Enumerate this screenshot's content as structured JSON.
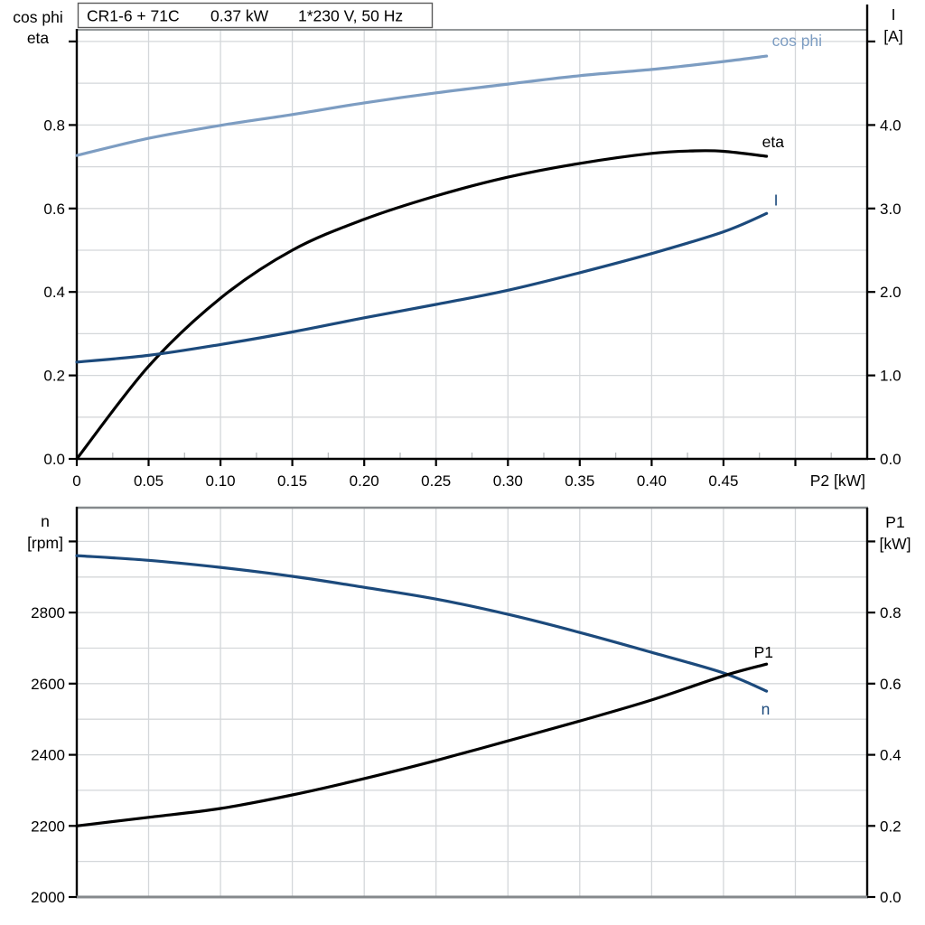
{
  "title_box": {
    "parts": [
      "CR1-6 + 71C",
      "0.37 kW",
      "1*230 V, 50 Hz"
    ]
  },
  "palette": {
    "light_blue": "#7d9dc2",
    "dark_blue": "#1c4a7c",
    "black": "#000000",
    "grid": "#d4d7da",
    "frame_gray": "#85898c",
    "box_border": "#5a5a5a",
    "text": "#000000",
    "background": "#ffffff"
  },
  "chart_data": [
    {
      "type": "line",
      "panel": "top",
      "x_axis": {
        "label": "P2 [kW]",
        "min": 0,
        "max": 0.55,
        "ticks": [
          {
            "v": 0,
            "label": "0"
          },
          {
            "v": 0.05,
            "label": "0.05"
          },
          {
            "v": 0.1,
            "label": "0.10"
          },
          {
            "v": 0.15,
            "label": "0.15"
          },
          {
            "v": 0.2,
            "label": "0.20"
          },
          {
            "v": 0.25,
            "label": "0.25"
          },
          {
            "v": 0.3,
            "label": "0.30"
          },
          {
            "v": 0.35,
            "label": "0.35"
          },
          {
            "v": 0.4,
            "label": "0.40"
          },
          {
            "v": 0.45,
            "label": "0.45"
          },
          {
            "v": 0.5,
            "label": ""
          }
        ],
        "grid_values": [
          0.05,
          0.1,
          0.15,
          0.2,
          0.25,
          0.3,
          0.35,
          0.4,
          0.45,
          0.5
        ],
        "minor_tick_values": [
          0.025,
          0.075,
          0.125,
          0.175,
          0.225,
          0.275,
          0.325,
          0.375,
          0.425,
          0.475,
          0.525
        ]
      },
      "y_left": {
        "title_lines": [
          "cos phi",
          "eta"
        ],
        "min": 0,
        "max": 1.028,
        "ticks": [
          {
            "v": 1.0,
            "label": ""
          },
          {
            "v": 0.8,
            "label": "0.8"
          },
          {
            "v": 0.6,
            "label": "0.6"
          },
          {
            "v": 0.4,
            "label": "0.4"
          },
          {
            "v": 0.2,
            "label": "0.2"
          },
          {
            "v": 0.0,
            "label": "0.0"
          }
        ],
        "grid_values": [
          0.1,
          0.2,
          0.3,
          0.4,
          0.5,
          0.6,
          0.7,
          0.8,
          0.9,
          1.0
        ]
      },
      "y_right": {
        "title_lines": [
          "I",
          "[A]"
        ],
        "min": 0,
        "max": 5.14,
        "ticks": [
          {
            "v": 5.0,
            "label": ""
          },
          {
            "v": 4.0,
            "label": "4.0"
          },
          {
            "v": 3.0,
            "label": "3.0"
          },
          {
            "v": 2.0,
            "label": "2.0"
          },
          {
            "v": 1.0,
            "label": "1.0"
          },
          {
            "v": 0.0,
            "label": "0.0"
          }
        ]
      },
      "series": [
        {
          "name": "cos phi",
          "axis": "left",
          "color_key": "light_blue",
          "label_offset": [
            6,
            -11
          ],
          "points": [
            [
              0,
              0.727
            ],
            [
              0.05,
              0.768
            ],
            [
              0.1,
              0.799
            ],
            [
              0.15,
              0.825
            ],
            [
              0.2,
              0.853
            ],
            [
              0.25,
              0.877
            ],
            [
              0.3,
              0.898
            ],
            [
              0.35,
              0.918
            ],
            [
              0.4,
              0.933
            ],
            [
              0.45,
              0.952
            ],
            [
              0.48,
              0.965
            ]
          ]
        },
        {
          "name": "eta",
          "axis": "left",
          "color_key": "black",
          "label_offset": [
            -5,
            -10
          ],
          "points": [
            [
              0,
              0.0
            ],
            [
              0.05,
              0.222
            ],
            [
              0.1,
              0.385
            ],
            [
              0.15,
              0.5
            ],
            [
              0.2,
              0.574
            ],
            [
              0.25,
              0.63
            ],
            [
              0.3,
              0.675
            ],
            [
              0.35,
              0.708
            ],
            [
              0.4,
              0.732
            ],
            [
              0.43,
              0.738
            ],
            [
              0.45,
              0.737
            ],
            [
              0.48,
              0.725
            ]
          ]
        },
        {
          "name": "I",
          "axis": "right",
          "color_key": "dark_blue",
          "label_offset": [
            8,
            -9
          ],
          "points": [
            [
              0,
              1.16
            ],
            [
              0.05,
              1.24
            ],
            [
              0.1,
              1.37
            ],
            [
              0.15,
              1.52
            ],
            [
              0.2,
              1.69
            ],
            [
              0.25,
              1.85
            ],
            [
              0.3,
              2.02
            ],
            [
              0.35,
              2.23
            ],
            [
              0.4,
              2.46
            ],
            [
              0.45,
              2.72
            ],
            [
              0.48,
              2.94
            ]
          ]
        }
      ]
    },
    {
      "type": "line",
      "panel": "bottom",
      "x_axis": {
        "label": "",
        "min": 0,
        "max": 0.55,
        "ticks": [],
        "grid_values": [
          0.05,
          0.1,
          0.15,
          0.2,
          0.25,
          0.3,
          0.35,
          0.4,
          0.45,
          0.5
        ],
        "minor_tick_values": []
      },
      "y_left": {
        "title_lines": [
          "n",
          "[rpm]"
        ],
        "min": 2000,
        "max": 3095,
        "ticks": [
          {
            "v": 3000,
            "label": ""
          },
          {
            "v": 2800,
            "label": "2800"
          },
          {
            "v": 2600,
            "label": "2600"
          },
          {
            "v": 2400,
            "label": "2400"
          },
          {
            "v": 2200,
            "label": "2200"
          },
          {
            "v": 2000,
            "label": "2000"
          }
        ],
        "grid_values": [
          2100,
          2200,
          2300,
          2400,
          2500,
          2600,
          2700,
          2800,
          2900,
          3000
        ]
      },
      "y_right": {
        "title_lines": [
          "P1",
          "[kW]"
        ],
        "min": 0,
        "max": 1.095,
        "ticks": [
          {
            "v": 1.0,
            "label": ""
          },
          {
            "v": 0.8,
            "label": "0.8"
          },
          {
            "v": 0.6,
            "label": "0.6"
          },
          {
            "v": 0.4,
            "label": "0.4"
          },
          {
            "v": 0.2,
            "label": "0.2"
          },
          {
            "v": 0.0,
            "label": "0.0"
          }
        ]
      },
      "series": [
        {
          "name": "n",
          "axis": "left",
          "color_key": "dark_blue",
          "label_offset": [
            -6,
            26
          ],
          "points": [
            [
              0,
              2960
            ],
            [
              0.05,
              2947
            ],
            [
              0.1,
              2927
            ],
            [
              0.15,
              2902
            ],
            [
              0.2,
              2871
            ],
            [
              0.25,
              2838
            ],
            [
              0.3,
              2795
            ],
            [
              0.35,
              2744
            ],
            [
              0.4,
              2688
            ],
            [
              0.45,
              2630
            ],
            [
              0.48,
              2579
            ]
          ]
        },
        {
          "name": "P1",
          "axis": "right",
          "color_key": "black",
          "label_offset": [
            -14,
            -7
          ],
          "points": [
            [
              0,
              0.2
            ],
            [
              0.05,
              0.224
            ],
            [
              0.1,
              0.249
            ],
            [
              0.15,
              0.287
            ],
            [
              0.2,
              0.333
            ],
            [
              0.25,
              0.384
            ],
            [
              0.3,
              0.439
            ],
            [
              0.35,
              0.495
            ],
            [
              0.4,
              0.554
            ],
            [
              0.45,
              0.622
            ],
            [
              0.48,
              0.655
            ]
          ]
        }
      ]
    }
  ]
}
